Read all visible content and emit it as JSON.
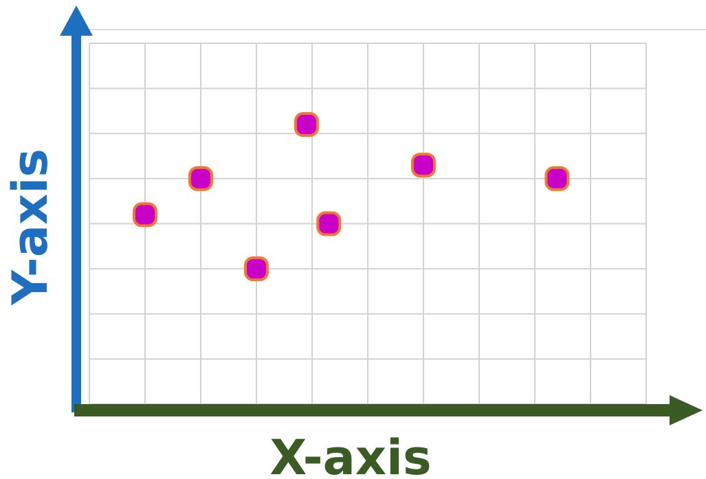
{
  "colors": {
    "x_axis": "#3b5b25",
    "y_axis": "#1f6fc0",
    "grid": "#d2d2d2",
    "point_fill": "#c800c8",
    "point_stroke": "#f07830"
  },
  "chart_data": {
    "type": "scatter",
    "title": "",
    "xlabel": "X-axis",
    "ylabel": "Y-axis",
    "xlim": [
      0,
      10
    ],
    "ylim": [
      0,
      8
    ],
    "grid": true,
    "legend": "none",
    "series": [
      {
        "x": [
          1.0,
          2.0,
          3.0,
          3.9,
          4.3,
          6.0,
          8.4
        ],
        "y": [
          4.2,
          5.0,
          3.0,
          6.2,
          4.0,
          5.3,
          5.0
        ]
      }
    ]
  }
}
